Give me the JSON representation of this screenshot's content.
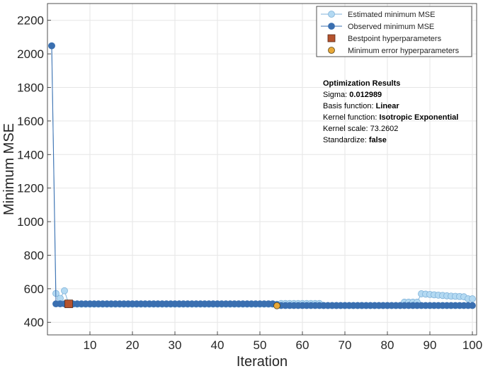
{
  "chart_data": {
    "type": "line",
    "xlabel": "Iteration",
    "ylabel": "Minimum MSE",
    "xlim": [
      0,
      101
    ],
    "ylim": [
      325,
      2300
    ],
    "xticks": [
      10,
      20,
      30,
      40,
      50,
      60,
      70,
      80,
      90,
      100
    ],
    "yticks": [
      400,
      600,
      800,
      1000,
      1200,
      1400,
      1600,
      1800,
      2000,
      2200
    ],
    "grid": true,
    "legend_position": "top-right",
    "colors": {
      "estimated_fill": "#b3d9f2",
      "estimated_line": "#7fb2d9",
      "observed": "#3a6fb0",
      "bestpoint": "#b5532e",
      "minerror": "#e8a838"
    },
    "legend": [
      {
        "label": "Estimated minimum MSE"
      },
      {
        "label": "Observed minimum MSE"
      },
      {
        "label": "Bestpoint hyperparameters"
      },
      {
        "label": "Minimum error hyperparameters"
      }
    ],
    "series": [
      {
        "name": "Estimated minimum MSE",
        "x": [
          1,
          2,
          3,
          4,
          5,
          6,
          7,
          8,
          9,
          10,
          11,
          12,
          13,
          14,
          15,
          16,
          17,
          18,
          19,
          20,
          21,
          22,
          23,
          24,
          25,
          26,
          27,
          28,
          29,
          30,
          31,
          32,
          33,
          34,
          35,
          36,
          37,
          38,
          39,
          40,
          41,
          42,
          43,
          44,
          45,
          46,
          47,
          48,
          49,
          50,
          51,
          52,
          53,
          54,
          55,
          56,
          57,
          58,
          59,
          60,
          61,
          62,
          63,
          64,
          65,
          66,
          67,
          68,
          69,
          70,
          71,
          72,
          73,
          74,
          75,
          76,
          77,
          78,
          79,
          80,
          81,
          82,
          83,
          84,
          85,
          86,
          87,
          88,
          89,
          90,
          91,
          92,
          93,
          94,
          95,
          96,
          97,
          98,
          99,
          100
        ],
        "values": [
          2048,
          572,
          543,
          588,
          510,
          508,
          508,
          508,
          508,
          508,
          508,
          508,
          508,
          508,
          508,
          508,
          508,
          508,
          508,
          508,
          508,
          508,
          508,
          508,
          508,
          508,
          508,
          508,
          508,
          508,
          508,
          508,
          508,
          508,
          508,
          508,
          508,
          508,
          508,
          508,
          508,
          508,
          508,
          508,
          508,
          508,
          508,
          508,
          508,
          508,
          508,
          508,
          508,
          508,
          512,
          512,
          512,
          512,
          512,
          512,
          512,
          512,
          512,
          512,
          500,
          500,
          500,
          500,
          500,
          500,
          500,
          500,
          500,
          500,
          500,
          500,
          500,
          500,
          500,
          500,
          500,
          500,
          500,
          520,
          520,
          520,
          520,
          570,
          568,
          566,
          564,
          562,
          560,
          558,
          556,
          555,
          554,
          552,
          540,
          540
        ]
      },
      {
        "name": "Observed minimum MSE",
        "x": [
          1,
          2,
          3,
          4,
          5,
          6,
          7,
          8,
          9,
          10,
          11,
          12,
          13,
          14,
          15,
          16,
          17,
          18,
          19,
          20,
          21,
          22,
          23,
          24,
          25,
          26,
          27,
          28,
          29,
          30,
          31,
          32,
          33,
          34,
          35,
          36,
          37,
          38,
          39,
          40,
          41,
          42,
          43,
          44,
          45,
          46,
          47,
          48,
          49,
          50,
          51,
          52,
          53,
          54,
          55,
          56,
          57,
          58,
          59,
          60,
          61,
          62,
          63,
          64,
          65,
          66,
          67,
          68,
          69,
          70,
          71,
          72,
          73,
          74,
          75,
          76,
          77,
          78,
          79,
          80,
          81,
          82,
          83,
          84,
          85,
          86,
          87,
          88,
          89,
          90,
          91,
          92,
          93,
          94,
          95,
          96,
          97,
          98,
          99,
          100
        ],
        "values": [
          2048,
          510,
          510,
          510,
          510,
          510,
          510,
          510,
          510,
          510,
          510,
          510,
          510,
          510,
          510,
          510,
          510,
          510,
          510,
          510,
          510,
          510,
          510,
          510,
          510,
          510,
          510,
          510,
          510,
          510,
          510,
          510,
          510,
          510,
          510,
          510,
          510,
          510,
          510,
          510,
          510,
          510,
          510,
          510,
          510,
          510,
          510,
          510,
          510,
          510,
          510,
          510,
          510,
          505,
          500,
          500,
          500,
          500,
          500,
          500,
          500,
          500,
          500,
          500,
          500,
          500,
          500,
          500,
          500,
          500,
          500,
          500,
          500,
          500,
          500,
          500,
          500,
          500,
          500,
          500,
          500,
          500,
          500,
          500,
          500,
          500,
          500,
          500,
          500,
          500,
          500,
          500,
          500,
          500,
          500,
          500,
          500,
          500,
          500,
          500
        ]
      },
      {
        "name": "Bestpoint hyperparameters",
        "x": [
          5
        ],
        "values": [
          510
        ]
      },
      {
        "name": "Minimum error hyperparameters",
        "x": [
          54
        ],
        "values": [
          499
        ]
      }
    ],
    "annotation": {
      "title": "Optimization Results",
      "lines": [
        {
          "label": "Sigma: ",
          "value": "0.012989"
        },
        {
          "label": "Basis function: ",
          "value": "Linear"
        },
        {
          "label": "Kernel function: ",
          "value": "Isotropic Exponential"
        },
        {
          "label": "Kernel scale: ",
          "value": "73.2602"
        },
        {
          "label": "Standardize: ",
          "value": "false"
        }
      ]
    }
  }
}
